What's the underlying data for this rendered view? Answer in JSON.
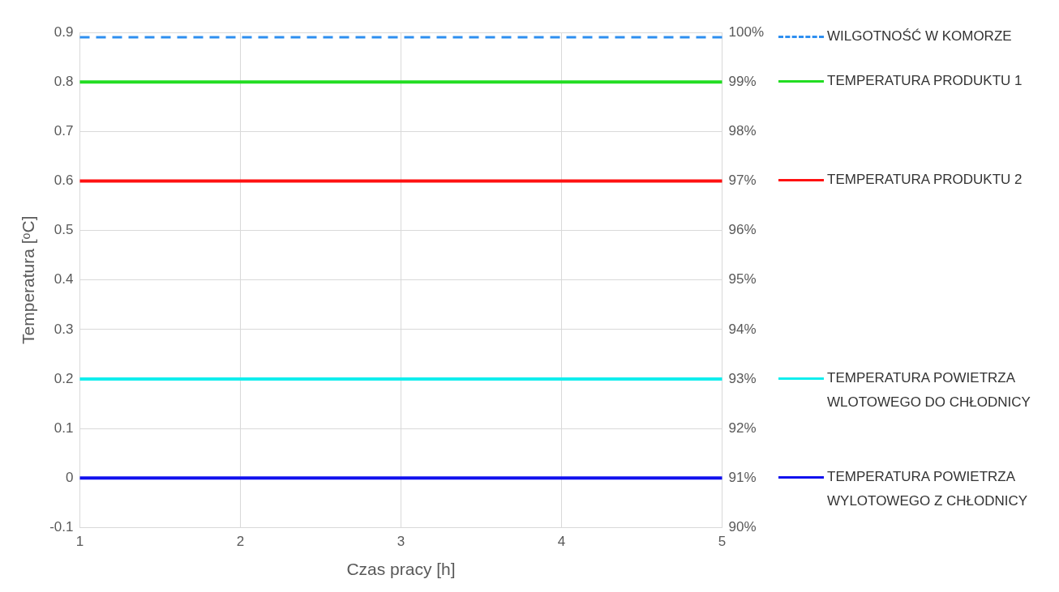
{
  "chart_data": {
    "type": "line",
    "xlabel": "Czas pracy [h]",
    "ylabel": "Temperatura [ᵒC]",
    "categories": [
      "1",
      "2",
      "3",
      "4",
      "5"
    ],
    "ylim": [
      -0.1,
      0.9
    ],
    "yticks": [
      -0.1,
      0,
      0.1,
      0.2,
      0.3,
      0.4,
      0.5,
      0.6,
      0.7,
      0.8,
      0.9
    ],
    "y2lim": [
      90,
      100
    ],
    "y2ticks": [
      {
        "value": 90,
        "label": "90%"
      },
      {
        "value": 91,
        "label": "91%"
      },
      {
        "value": 92,
        "label": "92%"
      },
      {
        "value": 93,
        "label": "93%"
      },
      {
        "value": 94,
        "label": "94%"
      },
      {
        "value": 95,
        "label": "95%"
      },
      {
        "value": 96,
        "label": "96%"
      },
      {
        "value": 97,
        "label": "97%"
      },
      {
        "value": 98,
        "label": "98%"
      },
      {
        "value": 99,
        "label": "99%"
      },
      {
        "value": 100,
        "label": "100%"
      }
    ],
    "grid": true,
    "legend": "right",
    "marker": "none",
    "series": [
      {
        "name": "WILGOTNOŚĆ W KOMORZE",
        "color": "#2e8ff0",
        "axis": "y2",
        "line_style": "dashed",
        "values": [
          99.9,
          99.9,
          99.9,
          99.9,
          99.9
        ]
      },
      {
        "name": "TEMPERATURA PRODUKTU 1",
        "color": "#22dd22",
        "values": [
          0.8,
          0.8,
          0.8,
          0.8,
          0.8
        ]
      },
      {
        "name": "TEMPERATURA PRODUKTU 2",
        "color": "#ff1111",
        "values": [
          0.6,
          0.6,
          0.6,
          0.6,
          0.6
        ]
      },
      {
        "name": "TEMPERATURA POWIETRZA WLOTOWEGO DO CHŁODNICY",
        "color": "#11eeee",
        "values": [
          0.2,
          0.2,
          0.2,
          0.2,
          0.2
        ]
      },
      {
        "name": "TEMPERATURA POWIETRZA WYLOTOWEGO Z CHŁODNICY",
        "color": "#1111ee",
        "values": [
          0,
          0,
          0,
          0,
          0
        ]
      }
    ]
  }
}
